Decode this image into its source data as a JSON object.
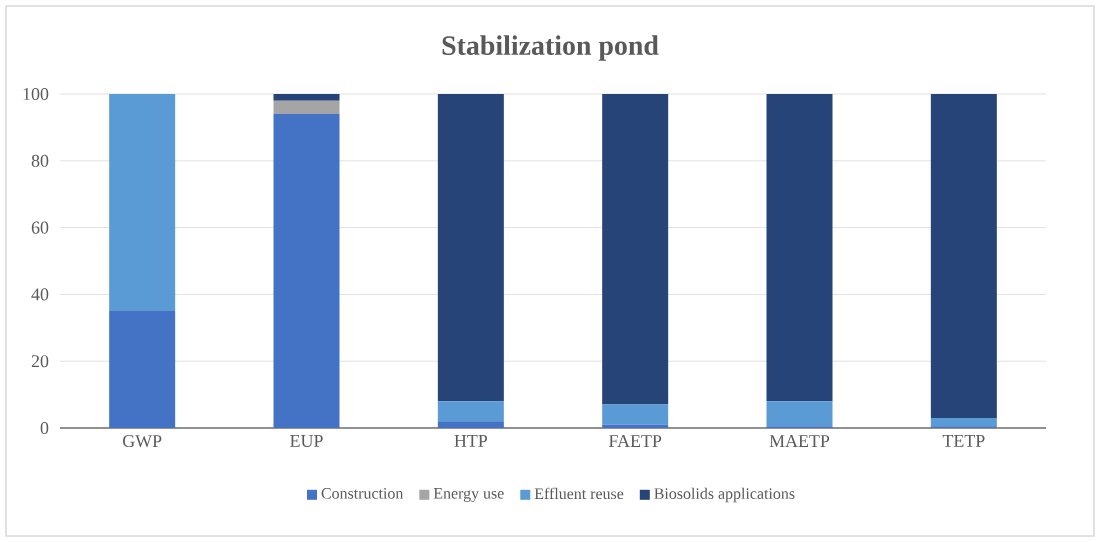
{
  "chart_data": {
    "type": "bar",
    "title": "Stabilization pond",
    "stacked": true,
    "categories": [
      "GWP",
      "EUP",
      "HTP",
      "FAETP",
      "MAETP",
      "TETP"
    ],
    "series": [
      {
        "name": "Construction",
        "color": "#4472c4",
        "values": [
          35,
          94,
          2,
          1,
          0.5,
          0.5
        ]
      },
      {
        "name": "Energy use",
        "color": "#a5a5a5",
        "values": [
          0,
          4,
          0,
          0,
          0,
          0
        ]
      },
      {
        "name": "Effluent reuse",
        "color": "#5b9bd5",
        "values": [
          65,
          0,
          6,
          6,
          7.5,
          2.5
        ]
      },
      {
        "name": "Biosolids applications",
        "color": "#264478",
        "values": [
          0,
          2,
          92,
          93,
          92,
          97
        ]
      }
    ],
    "ylim": [
      0,
      100
    ],
    "yticks": [
      0,
      20,
      40,
      60,
      80,
      100
    ],
    "grid": "y",
    "legend": "bottom"
  }
}
